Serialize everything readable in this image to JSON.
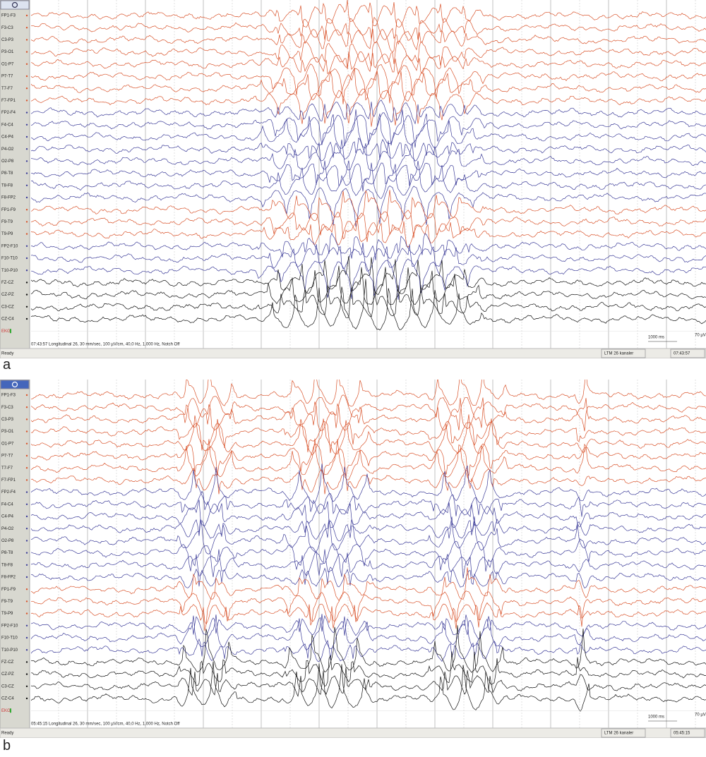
{
  "panels": [
    {
      "label": "a",
      "status_text": "07:43:57 Longitudinal 26, 30 mm/sec, 100 µV/cm, 40,0 Hz, 1,000 Hz, Notch Off",
      "ready": "Ready",
      "montage": "LTM 26 kanaler",
      "time": "07:43:57",
      "time_scale": "1000 ms",
      "amp_scale": "70 µV"
    },
    {
      "label": "b",
      "status_text": "05:45:15 Longitudinal 26, 30 mm/sec, 100 µV/cm, 40,0 Hz, 1,000 Hz, Notch Off",
      "ready": "Ready",
      "montage": "LTM 26 kanaler",
      "time": "05:45:15",
      "time_scale": "1000 ms",
      "amp_scale": "70 µV"
    }
  ],
  "channels": [
    {
      "label": "FP1-F3",
      "color": "#d9532b"
    },
    {
      "label": "F3-C3",
      "color": "#d9532b"
    },
    {
      "label": "C3-P3",
      "color": "#d9532b"
    },
    {
      "label": "P3-O1",
      "color": "#d9532b"
    },
    {
      "label": "O1-P7",
      "color": "#d9532b"
    },
    {
      "label": "P7-T7",
      "color": "#d9532b"
    },
    {
      "label": "T7-F7",
      "color": "#d9532b"
    },
    {
      "label": "F7-FP1",
      "color": "#d9532b"
    },
    {
      "label": "FP2-F4",
      "color": "#3d3d99"
    },
    {
      "label": "F4-C4",
      "color": "#3d3d99"
    },
    {
      "label": "C4-P4",
      "color": "#3d3d99"
    },
    {
      "label": "P4-O2",
      "color": "#3d3d99"
    },
    {
      "label": "O2-P8",
      "color": "#3d3d99"
    },
    {
      "label": "P8-T8",
      "color": "#3d3d99"
    },
    {
      "label": "T8-F8",
      "color": "#3d3d99"
    },
    {
      "label": "F8-FP2",
      "color": "#3d3d99"
    },
    {
      "label": "FP1-F9",
      "color": "#d9532b"
    },
    {
      "label": "F9-T9",
      "color": "#d9532b"
    },
    {
      "label": "T9-P9",
      "color": "#d9532b"
    },
    {
      "label": "FP2-F10",
      "color": "#3d3d99"
    },
    {
      "label": "F10-T10",
      "color": "#3d3d99"
    },
    {
      "label": "T10-P10",
      "color": "#3d3d99"
    },
    {
      "label": "FZ-CZ",
      "color": "#111111"
    },
    {
      "label": "CZ-PZ",
      "color": "#111111"
    },
    {
      "label": "C3-CZ",
      "color": "#111111"
    },
    {
      "label": "CZ-C4",
      "color": "#111111"
    }
  ],
  "ekg_label": "EKG"
}
